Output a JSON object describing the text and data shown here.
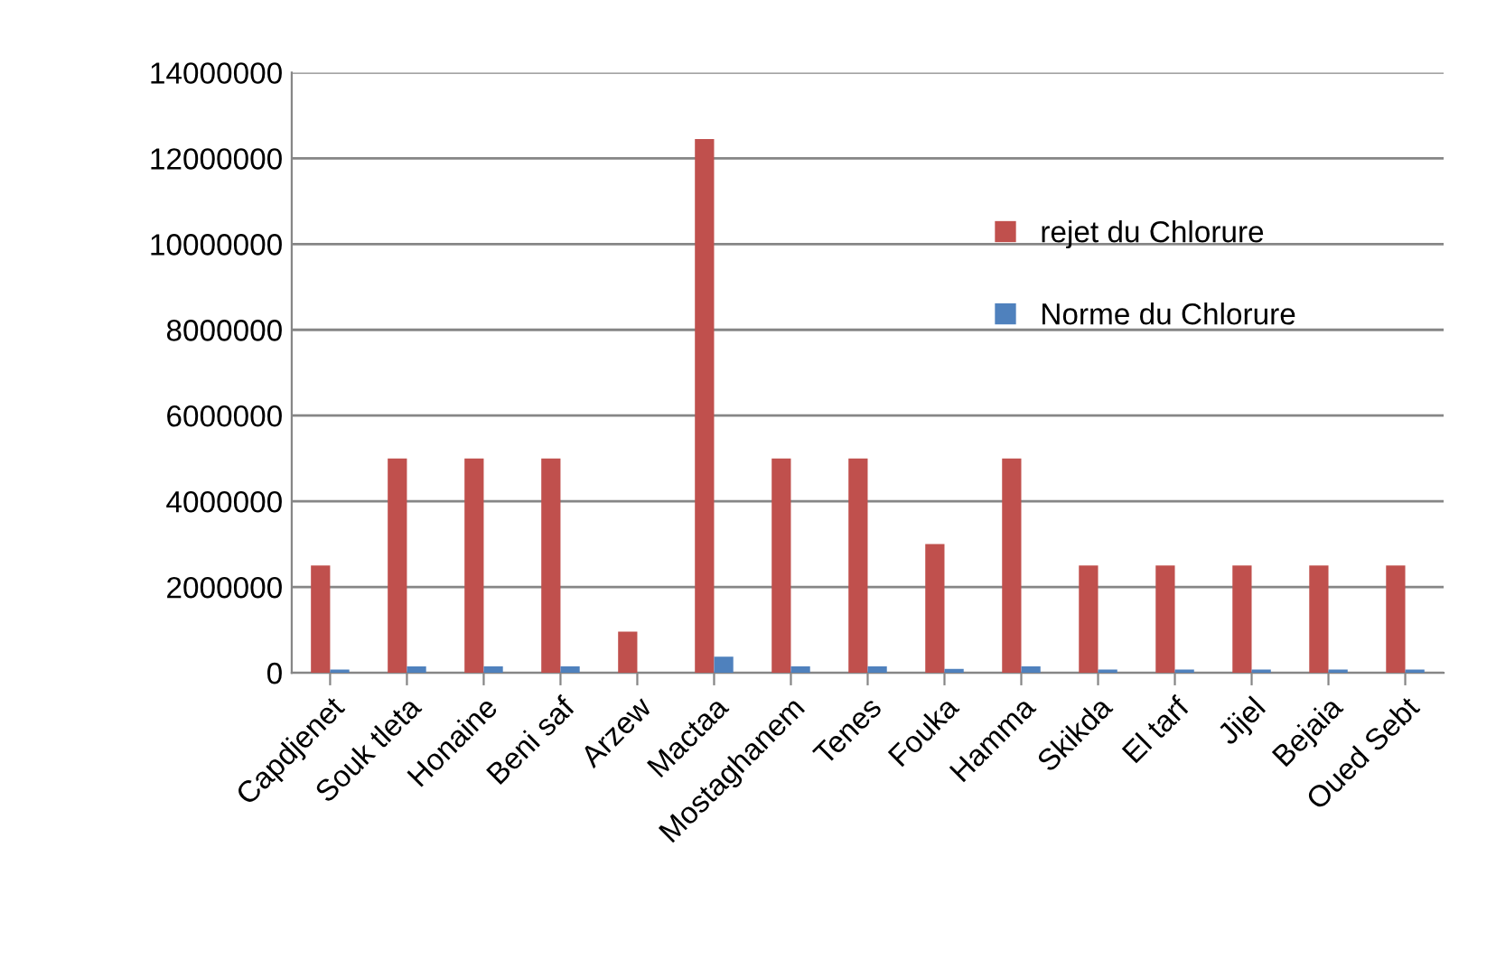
{
  "chart_data": {
    "type": "bar",
    "categories": [
      "Capdjenet",
      "Souk tleta",
      "Honaine",
      "Beni saf",
      "Arzew",
      "Mactaa",
      "Mostaghanem",
      "Tenes",
      "Fouka",
      "Hamma",
      "Skikda",
      "El tarf",
      "Jijel",
      "Bejaia",
      "Oued Sebt"
    ],
    "series": [
      {
        "name": "rejet du Chlorure",
        "color": "#c0504d",
        "values": [
          2500000,
          5000000,
          5000000,
          5000000,
          960000,
          12450000,
          5000000,
          5000000,
          3000000,
          5000000,
          2500000,
          2500000,
          2500000,
          2500000,
          2500000
        ]
      },
      {
        "name": "Norme du Chlorure",
        "color": "#4f81bd",
        "values": [
          75000,
          150000,
          150000,
          150000,
          null,
          375000,
          150000,
          150000,
          90000,
          150000,
          75000,
          75000,
          75000,
          75000,
          75000
        ]
      }
    ],
    "ylim": [
      0,
      14000000
    ],
    "yticks": [
      0,
      2000000,
      4000000,
      6000000,
      8000000,
      10000000,
      12000000,
      14000000
    ],
    "grid": "y",
    "legend": "top right"
  }
}
